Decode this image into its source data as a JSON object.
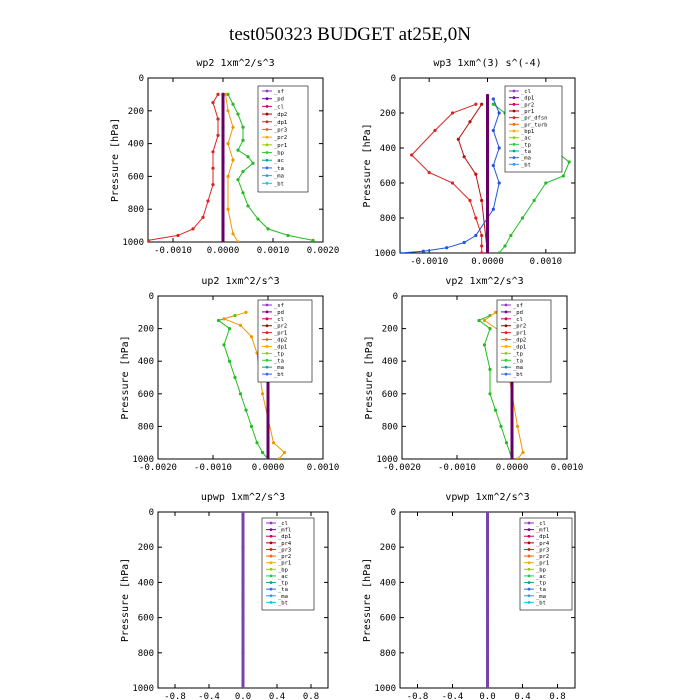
{
  "figure": {
    "title": "test050323  BUDGET at25E,0N"
  },
  "chart_data": [
    {
      "type": "line",
      "title": "wp2  1xm^2/s^3",
      "ylabel": "Pressure [hPa]",
      "xlim": [
        -0.0015,
        0.002
      ],
      "ylim": [
        1000,
        0
      ],
      "xticks": [
        -0.001,
        0.0,
        0.001,
        0.002
      ],
      "xtick_labels": [
        "-0.0010",
        "0.0000",
        "0.0010",
        "0.0020"
      ],
      "yticks": [
        0,
        200,
        400,
        600,
        800,
        1000
      ],
      "ytick_labels": [
        "0",
        "200",
        "400",
        "600",
        "800",
        "1000"
      ],
      "legend": [
        "_sf",
        "_pd",
        "_cl",
        "_dp2",
        "_dp1",
        "_pr3",
        "_pr2",
        "_pr1",
        "_bp",
        "_ac",
        "_ta",
        "_ma",
        "_bt"
      ],
      "series": [
        {
          "name": "_bp",
          "color": "#22bb22",
          "x": [
            0.0001,
            0.0002,
            0.0003,
            0.0004,
            0.0004,
            0.0003,
            0.0005,
            0.0006,
            0.0004,
            0.0003,
            0.0004,
            0.0005,
            0.0007,
            0.0009,
            0.0013,
            0.0018
          ],
          "y": [
            100,
            160,
            220,
            300,
            380,
            440,
            480,
            520,
            570,
            620,
            700,
            780,
            860,
            920,
            960,
            990
          ]
        },
        {
          "name": "_dp1",
          "color": "#dd2222",
          "x": [
            -0.0001,
            -0.0002,
            -0.0001,
            -0.0001,
            -0.0002,
            -0.0002,
            -0.0002,
            -0.0003,
            -0.0004,
            -0.0006,
            -0.0009,
            -0.0015
          ],
          "y": [
            100,
            150,
            250,
            350,
            450,
            550,
            650,
            750,
            850,
            920,
            960,
            990
          ]
        },
        {
          "name": "_pr2",
          "color": "#ee9900",
          "x": [
            5e-05,
            0.0001,
            0.0002,
            0.0001,
            0.0002,
            0.0001,
            0.0001,
            0.0002,
            0.0003
          ],
          "y": [
            100,
            200,
            300,
            400,
            500,
            600,
            800,
            950,
            1000
          ]
        },
        {
          "name": "_dp2",
          "color": "#bb1111",
          "x": [
            0.0,
            0.0,
            0.0,
            0.0,
            0.0,
            0.0
          ],
          "y": [
            100,
            300,
            500,
            700,
            900,
            1000
          ]
        },
        {
          "name": "_bt",
          "color": "#660066",
          "x": [
            0.0,
            0.0,
            0.0
          ],
          "y": [
            100,
            500,
            1000
          ]
        }
      ]
    },
    {
      "type": "line",
      "title": "wp3  1xm^(3) s^(-4)",
      "ylabel": "Pressure [hPa]",
      "xlim": [
        -0.0015,
        0.0015
      ],
      "ylim": [
        1000,
        0
      ],
      "xticks": [
        -0.001,
        0.0,
        0.001
      ],
      "xtick_labels": [
        "-0.0010",
        "0.0000",
        "0.0010"
      ],
      "yticks": [
        0,
        200,
        400,
        600,
        800,
        1000
      ],
      "ytick_labels": [
        "0",
        "200",
        "400",
        "600",
        "800",
        "1000"
      ],
      "legend": [
        "_cl",
        "_dp1",
        "_pr2",
        "_pr1",
        "_pr_dfsn",
        "_pr_turb",
        "_bp1",
        "_ac",
        "_tp",
        "_ta",
        "_ma",
        "_bt"
      ],
      "series": [
        {
          "name": "_bp1",
          "color": "#22bb22",
          "x": [
            0.0001,
            0.0003,
            0.0005,
            0.0008,
            0.0011,
            0.0014,
            0.0013,
            0.001,
            0.0008,
            0.0006,
            0.0004,
            0.0003,
            0.0002
          ],
          "y": [
            150,
            200,
            250,
            300,
            400,
            480,
            560,
            600,
            700,
            800,
            900,
            960,
            1000
          ]
        },
        {
          "name": "_pr2",
          "color": "#dd2222",
          "x": [
            -0.0002,
            -0.0006,
            -0.0009,
            -0.0013,
            -0.001,
            -0.0006,
            -0.0003,
            -0.0002,
            -0.0001,
            -0.0001,
            -0.0001
          ],
          "y": [
            150,
            200,
            300,
            440,
            540,
            600,
            700,
            800,
            900,
            960,
            1000
          ]
        },
        {
          "name": "_dp1",
          "color": "#bb1111",
          "x": [
            -0.0001,
            -0.0003,
            -0.0005,
            -0.0004,
            -0.0002,
            -0.0001,
            0.0
          ],
          "y": [
            150,
            250,
            350,
            450,
            550,
            700,
            1000
          ]
        },
        {
          "name": "_ta",
          "color": "#2255dd",
          "x": [
            0.0001,
            0.0002,
            0.0001,
            0.0002,
            0.0001,
            0.0002,
            0.0001,
            -0.0002,
            -0.0004,
            -0.0007,
            -0.0011,
            -0.0015
          ],
          "y": [
            120,
            200,
            300,
            400,
            500,
            600,
            750,
            900,
            940,
            970,
            990,
            1000
          ]
        },
        {
          "name": "_bt",
          "color": "#660066",
          "x": [
            0.0,
            0.0,
            0.0
          ],
          "y": [
            100,
            500,
            1000
          ]
        }
      ]
    },
    {
      "type": "line",
      "title": "up2  1xm^2/s^3",
      "ylabel": "Pressure [hPa]",
      "xlim": [
        -0.002,
        0.001
      ],
      "ylim": [
        1000,
        0
      ],
      "xticks": [
        -0.002,
        -0.001,
        0.0,
        0.001
      ],
      "xtick_labels": [
        "-0.0020",
        "-0.0010",
        "0.0000",
        "0.0010"
      ],
      "yticks": [
        0,
        200,
        400,
        600,
        800,
        1000
      ],
      "ytick_labels": [
        "0",
        "200",
        "400",
        "600",
        "800",
        "1000"
      ],
      "legend": [
        "_sf",
        "_pd",
        "_cl",
        "_pr2",
        "_pr1",
        "_dp2",
        "_dp1",
        "_tp",
        "_ta",
        "_ma",
        "_bt"
      ],
      "series": [
        {
          "name": "_pr1",
          "color": "#22bb22",
          "x": [
            -0.0006,
            -0.0009,
            -0.0007,
            -0.0008,
            -0.0007,
            -0.0006,
            -0.0005,
            -0.0004,
            -0.0003,
            -0.0002,
            -0.0001,
            0.0
          ],
          "y": [
            120,
            150,
            200,
            300,
            400,
            500,
            600,
            700,
            800,
            900,
            960,
            1000
          ]
        },
        {
          "name": "_pr2",
          "color": "#ee9900",
          "x": [
            -0.0004,
            -0.0008,
            -0.0005,
            -0.0003,
            -0.0002,
            -0.0001,
            0.0001,
            0.0003,
            0.0002
          ],
          "y": [
            100,
            140,
            180,
            250,
            350,
            600,
            900,
            960,
            1000
          ]
        },
        {
          "name": "_ta",
          "color": "#2299dd",
          "x": [
            0.0002,
            0.0005,
            0.0003,
            0.0001,
            0.0
          ],
          "y": [
            100,
            140,
            200,
            300,
            400
          ]
        },
        {
          "name": "_tp",
          "color": "#dd2222",
          "x": [
            0.0,
            0.0,
            0.0,
            0.0
          ],
          "y": [
            100,
            400,
            700,
            1000
          ]
        },
        {
          "name": "_bt",
          "color": "#660066",
          "x": [
            0.0,
            0.0,
            0.0
          ],
          "y": [
            50,
            500,
            1000
          ]
        }
      ]
    },
    {
      "type": "line",
      "title": "vp2  1xm^2/s^3",
      "ylabel": "Pressure [hPa]",
      "xlim": [
        -0.002,
        0.001
      ],
      "ylim": [
        1000,
        0
      ],
      "xticks": [
        -0.002,
        -0.001,
        0.0,
        0.001
      ],
      "xtick_labels": [
        "-0.0020",
        "-0.0010",
        "0.0000",
        "0.0010"
      ],
      "yticks": [
        0,
        200,
        400,
        600,
        800,
        1000
      ],
      "ytick_labels": [
        "0",
        "200",
        "400",
        "600",
        "800",
        "1000"
      ],
      "legend": [
        "_sf",
        "_pd",
        "_cl",
        "_pr2",
        "_pr1",
        "_dp2",
        "_dp1",
        "_tp",
        "_ta",
        "_ma",
        "_bt"
      ],
      "series": [
        {
          "name": "_pr1",
          "color": "#22bb22",
          "x": [
            -0.0004,
            -0.0006,
            -0.0004,
            -0.0005,
            -0.0004,
            -0.0004,
            -0.0003,
            -0.0002,
            -0.0001,
            0.0
          ],
          "y": [
            120,
            150,
            200,
            300,
            450,
            600,
            700,
            800,
            900,
            1000
          ]
        },
        {
          "name": "_pr2",
          "color": "#ee9900",
          "x": [
            -0.0003,
            -0.0005,
            -0.0002,
            -0.0001,
            0.0001,
            0.0002,
            0.0001
          ],
          "y": [
            100,
            150,
            220,
            400,
            800,
            960,
            1000
          ]
        },
        {
          "name": "_tp",
          "color": "#dd2222",
          "x": [
            0.0,
            0.0,
            0.0,
            0.0
          ],
          "y": [
            100,
            400,
            700,
            1000
          ]
        },
        {
          "name": "_bt",
          "color": "#660066",
          "x": [
            0.0,
            0.0,
            0.0
          ],
          "y": [
            50,
            500,
            1000
          ]
        }
      ]
    },
    {
      "type": "line",
      "title": "upwp  1xm^2/s^3",
      "ylabel": "Pressure [hPa]",
      "xlim": [
        -1.0,
        1.0
      ],
      "ylim": [
        1000,
        0
      ],
      "xticks": [
        -0.8,
        -0.4,
        0.0,
        0.4,
        0.8
      ],
      "xtick_labels": [
        "-0.8",
        "-0.4",
        "0.0",
        "0.4",
        "0.8"
      ],
      "yticks": [
        0,
        200,
        400,
        600,
        800,
        1000
      ],
      "ytick_labels": [
        "0",
        "200",
        "400",
        "600",
        "800",
        "1000"
      ],
      "legend": [
        "_cl",
        "_mfl",
        "_dp1",
        "_pr4",
        "_pr3",
        "_pr2",
        "_pr1",
        "_bp",
        "_ac",
        "_tp",
        "_ta",
        "_ma",
        "_bt"
      ],
      "series": [
        {
          "name": "_dp1",
          "color": "#dd2222",
          "x": [
            0,
            0,
            0,
            0,
            0,
            0
          ],
          "y": [
            0,
            200,
            400,
            600,
            800,
            1000
          ]
        },
        {
          "name": "_bt",
          "color": "#7744aa",
          "x": [
            0,
            0,
            0
          ],
          "y": [
            0,
            500,
            1000
          ]
        }
      ]
    },
    {
      "type": "line",
      "title": "vpwp  1xm^2/s^3",
      "ylabel": "Pressure [hPa]",
      "xlim": [
        -1.0,
        1.0
      ],
      "ylim": [
        1000,
        0
      ],
      "xticks": [
        -0.8,
        -0.4,
        0.0,
        0.4,
        0.8
      ],
      "xtick_labels": [
        "-0.8",
        "-0.4",
        "0.0",
        "0.4",
        "0.8"
      ],
      "yticks": [
        0,
        200,
        400,
        600,
        800,
        1000
      ],
      "ytick_labels": [
        "0",
        "200",
        "400",
        "600",
        "800",
        "1000"
      ],
      "legend": [
        "_cl",
        "_mfl",
        "_dp1",
        "_pr4",
        "_pr3",
        "_pr2",
        "_pr1",
        "_bp",
        "_ac",
        "_tp",
        "_ta",
        "_ma",
        "_bt"
      ],
      "series": [
        {
          "name": "_dp1",
          "color": "#dd2222",
          "x": [
            0,
            0,
            0,
            0,
            0,
            0
          ],
          "y": [
            0,
            200,
            400,
            600,
            800,
            1000
          ]
        },
        {
          "name": "_bt",
          "color": "#7744aa",
          "x": [
            0,
            0,
            0
          ],
          "y": [
            0,
            500,
            1000
          ]
        }
      ]
    }
  ],
  "legend_palette": [
    "#9933cc",
    "#7700aa",
    "#cc0066",
    "#aa0000",
    "#dd2222",
    "#ff6600",
    "#ffaa00",
    "#99cc00",
    "#33cc33",
    "#00aa88",
    "#3366ff",
    "#3399ff",
    "#00ccee",
    "#33ddff"
  ]
}
